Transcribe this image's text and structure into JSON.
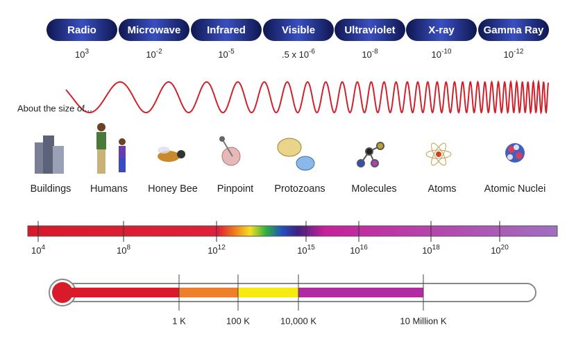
{
  "bands": [
    {
      "name": "Radio",
      "wavelength": {
        "base": "10",
        "exp": "3"
      }
    },
    {
      "name": "Microwave",
      "wavelength": {
        "base": "10",
        "exp": "-2"
      }
    },
    {
      "name": "Infrared",
      "wavelength": {
        "base": "10",
        "exp": "-5"
      }
    },
    {
      "name": "Visible",
      "wavelength": {
        "base": ".5 x 10",
        "exp": "-6"
      }
    },
    {
      "name": "Ultraviolet",
      "wavelength": {
        "base": "10",
        "exp": "-8"
      }
    },
    {
      "name": "X-ray",
      "wavelength": {
        "base": "10",
        "exp": "-10"
      }
    },
    {
      "name": "Gamma Ray",
      "wavelength": {
        "base": "10",
        "exp": "-12"
      }
    }
  ],
  "size_caption": "About the size of...",
  "objects": [
    "Buildings",
    "Humans",
    "Honey Bee",
    "Pinpoint",
    "Protozoans",
    "Molecules",
    "Atoms",
    "Atomic Nuclei"
  ],
  "frequency_ticks": [
    {
      "base": "10",
      "exp": "4"
    },
    {
      "base": "10",
      "exp": "8"
    },
    {
      "base": "10",
      "exp": "12"
    },
    {
      "base": "10",
      "exp": "15"
    },
    {
      "base": "10",
      "exp": "16"
    },
    {
      "base": "10",
      "exp": "18"
    },
    {
      "base": "10",
      "exp": "20"
    }
  ],
  "temperature_ticks": [
    "1 K",
    "100 K",
    "10,000 K",
    "10 Million K"
  ]
}
